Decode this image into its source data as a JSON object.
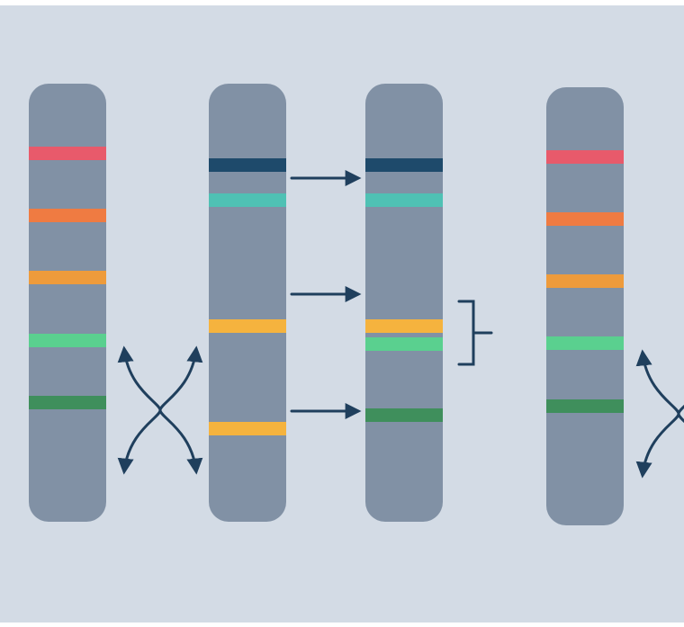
{
  "colors": {
    "background": "#d3dbe5",
    "edge_background": "#ffffff",
    "chromosome": "#8191a5",
    "arrow": "#1f3f5d",
    "band_red": "#e85a6b",
    "band_orange_red": "#ef7b42",
    "band_orange": "#ee9b3b",
    "band_yellow": "#f5b33e",
    "band_light_green": "#5ad08f",
    "band_dark_green": "#3f8f5c",
    "band_navy": "#1e4a6b",
    "band_teal": "#4fc1b4"
  },
  "diagram": {
    "chromosomes": [
      {
        "name": "chromosome-1",
        "bands": [
          {
            "name": "band-red",
            "color": "band_red"
          },
          {
            "name": "band-orange-red",
            "color": "band_orange_red"
          },
          {
            "name": "band-orange",
            "color": "band_orange"
          },
          {
            "name": "band-light-green",
            "color": "band_light_green"
          },
          {
            "name": "band-dark-green",
            "color": "band_dark_green"
          }
        ]
      },
      {
        "name": "chromosome-2",
        "bands": [
          {
            "name": "band-navy",
            "color": "band_navy"
          },
          {
            "name": "band-teal",
            "color": "band_teal"
          },
          {
            "name": "band-yellow-upper",
            "color": "band_yellow"
          },
          {
            "name": "band-yellow-lower",
            "color": "band_yellow"
          }
        ]
      },
      {
        "name": "chromosome-3",
        "bands": [
          {
            "name": "band-navy",
            "color": "band_navy"
          },
          {
            "name": "band-teal",
            "color": "band_teal"
          },
          {
            "name": "band-yellow",
            "color": "band_yellow"
          },
          {
            "name": "band-light-green",
            "color": "band_light_green"
          },
          {
            "name": "band-dark-green",
            "color": "band_dark_green"
          }
        ]
      },
      {
        "name": "chromosome-4",
        "bands": [
          {
            "name": "band-red",
            "color": "band_red"
          },
          {
            "name": "band-orange-red",
            "color": "band_orange_red"
          },
          {
            "name": "band-orange",
            "color": "band_orange"
          },
          {
            "name": "band-light-green",
            "color": "band_light_green"
          },
          {
            "name": "band-dark-green",
            "color": "band_dark_green"
          }
        ]
      }
    ],
    "connectors": [
      {
        "name": "crossover-arrows-left",
        "type": "crossover"
      },
      {
        "name": "transfer-arrow-top",
        "type": "arrow"
      },
      {
        "name": "transfer-arrow-middle",
        "type": "arrow"
      },
      {
        "name": "transfer-arrow-bottom",
        "type": "arrow"
      },
      {
        "name": "grouping-bracket",
        "type": "bracket"
      },
      {
        "name": "crossover-arrows-right",
        "type": "crossover"
      }
    ]
  }
}
